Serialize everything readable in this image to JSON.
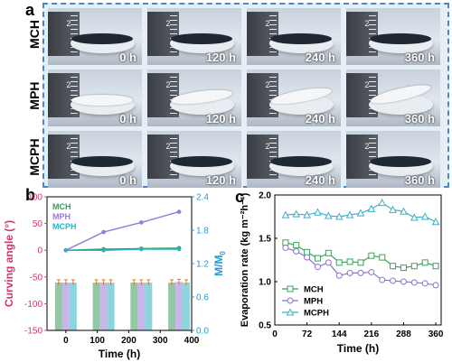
{
  "panel_a": {
    "letter": "a",
    "rows": [
      {
        "label": "MCH",
        "film": "dark",
        "times": [
          "0 h",
          "120 h",
          "240 h",
          "360 h"
        ]
      },
      {
        "label": "MPH",
        "film": "white",
        "times": [
          "0 h",
          "120 h",
          "240 h",
          "360 h"
        ]
      },
      {
        "label": "MCPH",
        "film": "dark",
        "times": [
          "0 h",
          "120 h",
          "240 h",
          "360 h"
        ]
      }
    ],
    "ruler_text": "2",
    "border_color": "#4a86c8"
  },
  "chart_data": [
    {
      "panel": "b",
      "type": "bar",
      "x": [
        0,
        120,
        240,
        360
      ],
      "xlabel": "Time (h)",
      "xlim": [
        -60,
        400
      ],
      "xticks": [
        0,
        100,
        200,
        300,
        400
      ],
      "ylabel": "Curving angle (°)",
      "ylim": [
        -150,
        100
      ],
      "yticks": [
        -150,
        -100,
        -50,
        0,
        50,
        100
      ],
      "y2label": "M/M0",
      "y2lim": [
        0.0,
        2.4
      ],
      "y2ticks": [
        "0.0",
        "0.6",
        "1.2",
        "1.8",
        "2.4"
      ],
      "legend_position": "top-left",
      "series": [
        {
          "name": "MCH",
          "color": "#3a9a5b",
          "angle": [
            0,
            2,
            3,
            4
          ],
          "mass_ratio": [
            0.86,
            0.86,
            0.86,
            0.86
          ]
        },
        {
          "name": "MPH",
          "color": "#9a7ad6",
          "angle": [
            0,
            34,
            52,
            72
          ],
          "mass_ratio": [
            0.86,
            0.86,
            0.86,
            0.87
          ]
        },
        {
          "name": "MCPH",
          "color": "#2bb3c4",
          "angle": [
            0,
            0,
            2,
            2
          ],
          "mass_ratio": [
            0.86,
            0.86,
            0.86,
            0.86
          ]
        }
      ],
      "colors": {
        "left_axis": "#d6336c",
        "right_axis": "#1e9bd7"
      }
    },
    {
      "panel": "c",
      "type": "line",
      "xlabel": "Time (h)",
      "xlim": [
        0,
        372
      ],
      "xticks": [
        0,
        72,
        144,
        216,
        288,
        360
      ],
      "ylabel": "Evaporation rate (kg m⁻²h⁻¹)",
      "ylim": [
        0.5,
        2.0
      ],
      "yticks": [
        "0.5",
        "1.0",
        "1.5",
        "2.0"
      ],
      "legend_position": "bottom-left",
      "series": [
        {
          "name": "MCH",
          "color": "#3aa25a",
          "marker": "square",
          "x": [
            24,
            48,
            72,
            96,
            120,
            144,
            168,
            192,
            216,
            240,
            264,
            288,
            312,
            336,
            360
          ],
          "y": [
            1.45,
            1.42,
            1.34,
            1.27,
            1.33,
            1.22,
            1.23,
            1.22,
            1.3,
            1.28,
            1.18,
            1.16,
            1.18,
            1.22,
            1.18
          ]
        },
        {
          "name": "MPH",
          "color": "#8a74c8",
          "marker": "circle",
          "x": [
            24,
            48,
            72,
            96,
            120,
            144,
            168,
            192,
            216,
            240,
            264,
            288,
            312,
            336,
            360
          ],
          "y": [
            1.39,
            1.35,
            1.28,
            1.17,
            1.22,
            1.07,
            1.1,
            1.1,
            1.11,
            1.02,
            1.01,
            1.0,
            0.99,
            0.98,
            0.96
          ]
        },
        {
          "name": "MCPH",
          "color": "#3bb0c8",
          "marker": "triangle",
          "x": [
            24,
            48,
            72,
            96,
            120,
            144,
            168,
            192,
            216,
            240,
            264,
            288,
            312,
            336,
            360
          ],
          "y": [
            1.77,
            1.78,
            1.77,
            1.8,
            1.76,
            1.75,
            1.77,
            1.79,
            1.84,
            1.91,
            1.83,
            1.81,
            1.74,
            1.75,
            1.69
          ]
        }
      ]
    }
  ]
}
